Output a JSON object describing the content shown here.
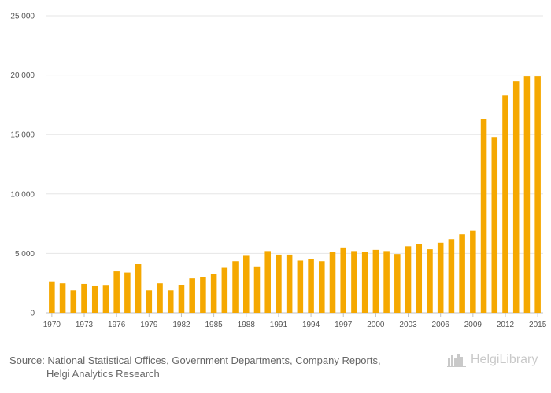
{
  "chart_data": {
    "type": "bar",
    "title": "",
    "xlabel": "",
    "ylabel": "",
    "ylim": [
      0,
      25000
    ],
    "yticks": [
      0,
      5000,
      10000,
      15000,
      20000,
      25000
    ],
    "ytick_labels": [
      "0",
      "5 000",
      "10 000",
      "15 000",
      "20 000",
      "25 000"
    ],
    "categories": [
      "1970",
      "1971",
      "1972",
      "1973",
      "1974",
      "1975",
      "1976",
      "1977",
      "1978",
      "1979",
      "1980",
      "1981",
      "1982",
      "1983",
      "1984",
      "1985",
      "1986",
      "1987",
      "1988",
      "1989",
      "1990",
      "1991",
      "1992",
      "1993",
      "1994",
      "1995",
      "1996",
      "1997",
      "1998",
      "1999",
      "2000",
      "2001",
      "2002",
      "2003",
      "2004",
      "2005",
      "2006",
      "2007",
      "2008",
      "2009",
      "2010",
      "2011",
      "2012",
      "2013",
      "2014",
      "2015"
    ],
    "xtick_labels": [
      "1970",
      "1973",
      "1976",
      "1979",
      "1982",
      "1985",
      "1988",
      "1991",
      "1994",
      "1997",
      "2000",
      "2003",
      "2006",
      "2009",
      "2012",
      "2015"
    ],
    "values": [
      2600,
      2500,
      1900,
      2450,
      2250,
      2300,
      3500,
      3400,
      4100,
      1900,
      2500,
      1900,
      2350,
      2900,
      3000,
      3300,
      3800,
      4350,
      4800,
      3850,
      5200,
      4900,
      4900,
      4400,
      4550,
      4350,
      5150,
      5500,
      5200,
      5100,
      5300,
      5200,
      4950,
      5600,
      5800,
      5350,
      5900,
      6200,
      6600,
      6900,
      16300,
      14800,
      18300,
      19500,
      19900,
      19900
    ],
    "bar_color": "#f5a800",
    "grid": true
  },
  "footer": {
    "source_line1": "Source: National Statistical Offices, Government Departments, Company Reports,",
    "source_line2": "Helgi Analytics Research",
    "logo_text": "HelgiLibrary"
  }
}
